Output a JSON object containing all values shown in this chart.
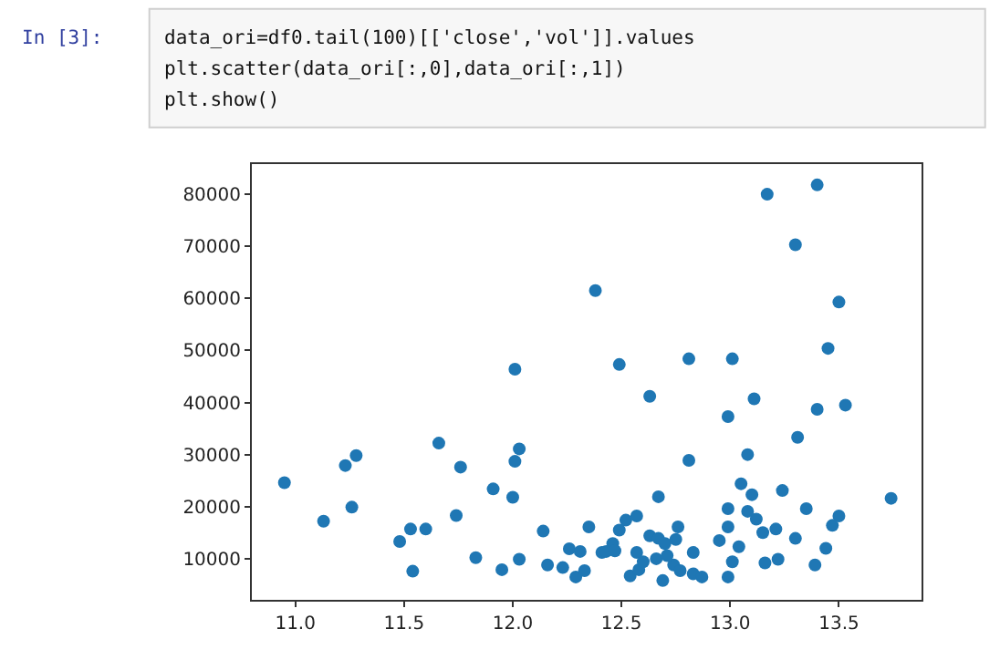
{
  "chart_data": {
    "type": "scatter",
    "marker": "circle",
    "legend": false,
    "annotations": [
      "In [3]:",
      "data_ori=df0.tail(100)[['close','vol']].values",
      "plt.scatter(data_ori[:,0],data_ori[:,1])",
      "plt.show()"
    ],
    "xlim": [
      10.8,
      13.88
    ],
    "ylim": [
      2100,
      85800
    ],
    "xticks": [
      {
        "value": 11,
        "label": "11.0"
      },
      {
        "value": 11.5,
        "label": "11.5"
      },
      {
        "value": 12,
        "label": "12.0"
      },
      {
        "value": 12.5,
        "label": "12.5"
      },
      {
        "value": 13,
        "label": "13.0"
      },
      {
        "value": 13.5,
        "label": "13.5"
      }
    ],
    "yticks": [
      10000,
      20000,
      30000,
      40000,
      50000,
      60000,
      70000,
      80000
    ],
    "series": [
      {
        "color": "#1f77b4",
        "x": [
          10.95,
          11.13,
          11.23,
          11.28,
          11.26,
          11.48,
          11.53,
          11.6,
          11.54,
          11.66,
          11.74,
          11.76,
          11.83,
          11.91,
          11.95,
          12.0,
          12.01,
          12.01,
          12.03,
          12.03,
          12.14,
          12.16,
          12.26,
          12.31,
          12.35,
          12.38,
          12.23,
          12.29,
          12.33,
          12.41,
          12.49,
          12.63,
          12.81,
          13.01,
          12.99,
          13.11,
          13.17,
          13.4,
          13.3,
          13.5,
          13.45,
          13.4,
          13.53,
          13.31,
          13.08,
          12.81,
          13.05,
          13.1,
          13.24,
          13.74,
          12.67,
          12.99,
          13.08,
          13.12,
          13.35,
          13.5,
          13.47,
          12.52,
          12.57,
          12.49,
          12.46,
          12.43,
          12.63,
          12.67,
          12.75,
          12.76,
          12.99,
          13.15,
          13.21,
          12.95,
          13.04,
          13.3,
          13.44,
          12.57,
          12.7,
          12.83,
          13.01,
          13.16,
          13.22,
          13.39,
          12.54,
          12.58,
          12.6,
          12.69,
          12.74,
          12.77,
          12.83,
          12.87,
          12.99,
          12.66,
          12.71,
          12.47
        ],
        "values": [
          24600,
          17200,
          27900,
          29800,
          19900,
          13300,
          15700,
          15700,
          7600,
          32200,
          18300,
          27600,
          10200,
          23400,
          7900,
          21800,
          46400,
          28700,
          31100,
          9900,
          15300,
          8800,
          11900,
          11400,
          16100,
          61500,
          8300,
          6500,
          7700,
          11200,
          47300,
          41200,
          48400,
          48400,
          37300,
          40700,
          80000,
          81800,
          70300,
          59300,
          50400,
          38700,
          39500,
          33300,
          30000,
          28900,
          24400,
          22300,
          23100,
          21600,
          21900,
          19600,
          19100,
          17600,
          19600,
          18200,
          16400,
          17400,
          18200,
          15500,
          12900,
          11400,
          14400,
          13900,
          13700,
          16100,
          16100,
          15000,
          15700,
          13500,
          12300,
          13900,
          12000,
          11200,
          12900,
          11200,
          9400,
          9200,
          9900,
          8800,
          6700,
          7900,
          9400,
          5800,
          8800,
          7700,
          7100,
          6500,
          6500,
          10000,
          10600,
          11500
        ]
      }
    ]
  }
}
